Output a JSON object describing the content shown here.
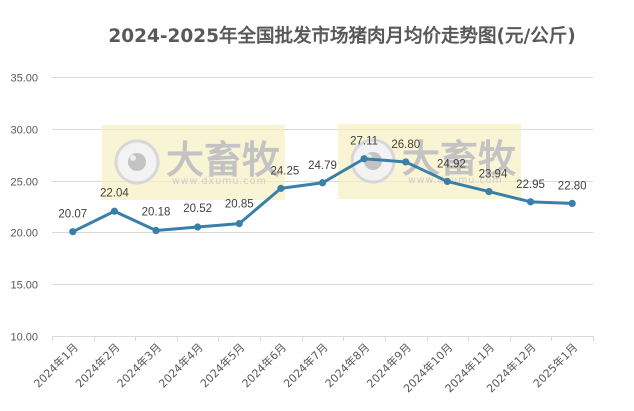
{
  "chart_data": {
    "type": "line",
    "title": "2024-2025年全国批发市场猪肉月均价走势图(元/公斤)",
    "xlabel": "",
    "ylabel": "",
    "categories": [
      "2024年1月",
      "2024年2月",
      "2024年3月",
      "2024年4月",
      "2024年5月",
      "2024年6月",
      "2024年7月",
      "2024年8月",
      "2024年9月",
      "2024年10月",
      "2024年11月",
      "2024年12月",
      "2025年1月"
    ],
    "series": [
      {
        "name": "全国批发市场猪肉月均价",
        "values": [
          20.07,
          22.04,
          20.18,
          20.52,
          20.85,
          24.25,
          24.79,
          27.11,
          26.8,
          24.92,
          23.94,
          22.95,
          22.8
        ],
        "data_labels": [
          "20.07",
          "22.04",
          "20.18",
          "20.52",
          "20.85",
          "24.25",
          "24.79",
          "27.11",
          "26.80",
          "24.92",
          "23.94",
          "22.95",
          "22.80"
        ],
        "color": "#3a7fa8"
      }
    ],
    "ylim": [
      10,
      35
    ],
    "yticks": [
      "10.00",
      "15.00",
      "20.00",
      "25.00",
      "30.00",
      "35.00"
    ],
    "grid": true,
    "legend": "none",
    "annotations": []
  },
  "watermark": {
    "brand": "大畜牧",
    "url": "www.dxumu.com",
    "bg_color": "#f7f0c0"
  },
  "colors": {
    "line": "#3a7fa8",
    "line_overlay": "#4e8f7e",
    "grid": "#d9d9d9",
    "text": "#595959"
  }
}
